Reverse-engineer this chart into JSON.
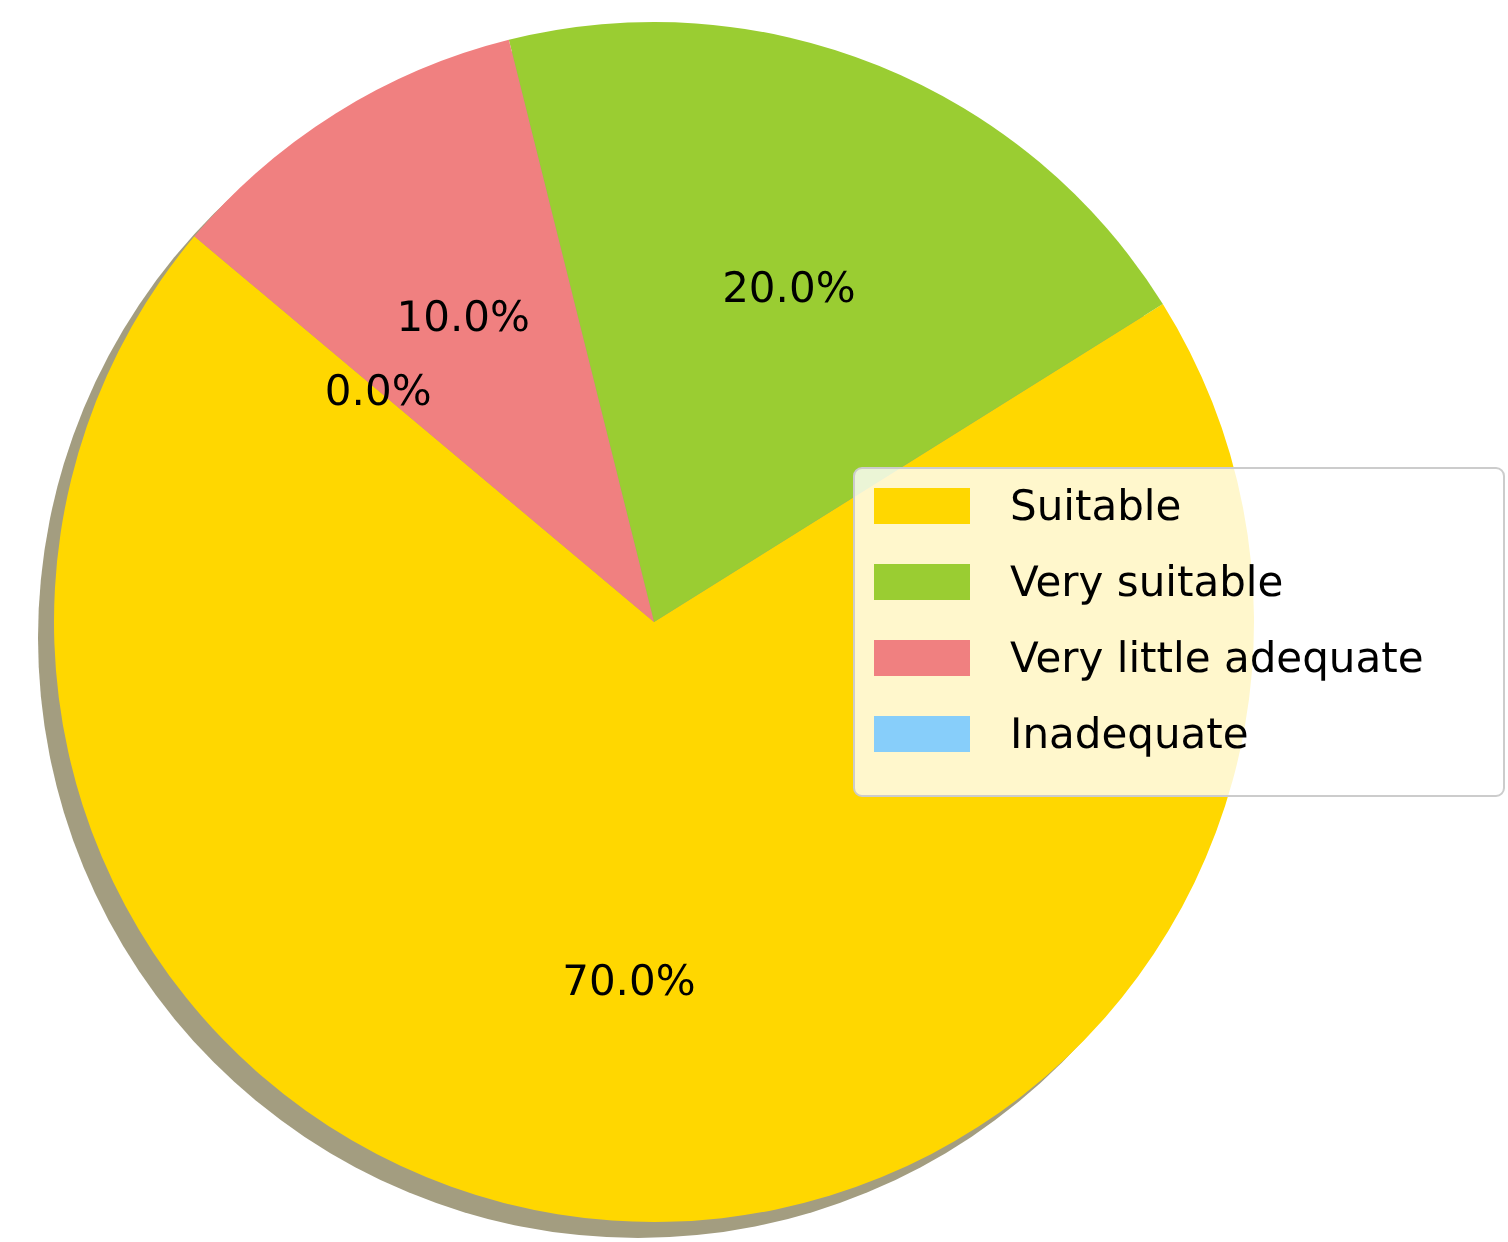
{
  "chart_data": {
    "type": "pie",
    "categories": [
      "Suitable",
      "Very suitable",
      "Very little adequate",
      "Inadequate"
    ],
    "values": [
      70,
      20,
      10,
      0
    ],
    "colors": [
      "#ffd700",
      "#9acd32",
      "#f08080",
      "#87cefa"
    ],
    "value_labels": [
      "70.0%",
      "20.0%",
      "10.0%",
      "0.0%"
    ],
    "legend": "right"
  }
}
